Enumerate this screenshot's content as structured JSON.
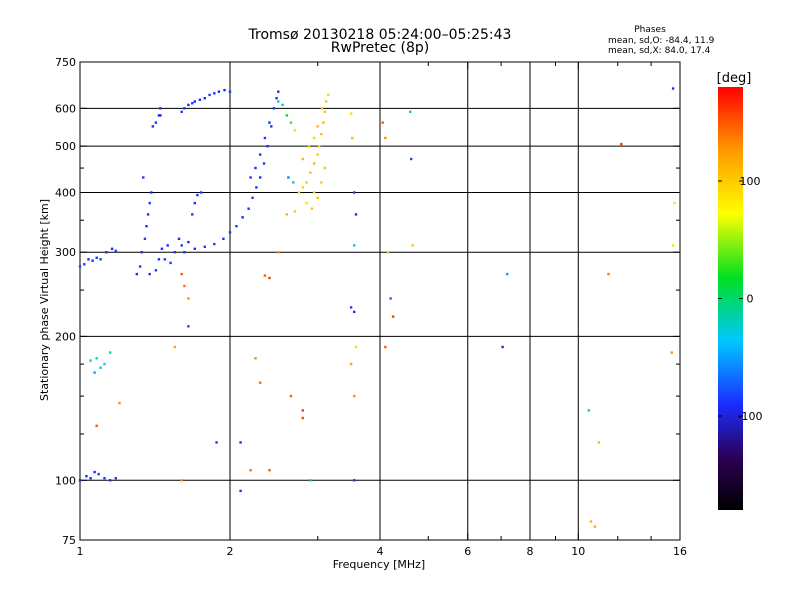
{
  "header": {
    "title": "Tromsø 20130218 05:24:00–05:25:43",
    "subtitle": "RwPretec (8p)"
  },
  "phases": {
    "heading": "Phases",
    "line_o": "mean, sd,O: -84.4, 11.9",
    "line_x": "mean, sd,X:  84.0, 17.4"
  },
  "chart_data": {
    "type": "scatter",
    "xlabel": "Frequency [MHz]",
    "ylabel": "Stationary phase Virtual Height [km]",
    "x_scale": "log",
    "y_scale": "log",
    "xlim": [
      1,
      16
    ],
    "ylim": [
      75,
      750
    ],
    "x_ticks": [
      1,
      2,
      4,
      6,
      8,
      10,
      16
    ],
    "y_ticks": [
      75,
      100,
      200,
      300,
      400,
      500,
      600,
      750
    ],
    "x_minor_ticks": [
      3,
      5,
      7,
      9,
      12,
      14
    ],
    "y_minor_ticks": [
      125,
      150,
      175,
      250,
      350,
      450
    ],
    "grid": true,
    "colorbar": {
      "label": "[deg]",
      "range": [
        -180,
        180
      ],
      "ticks": [
        100,
        0,
        -100
      ],
      "colormap": "rainbow"
    },
    "series": [
      {
        "points": [
          [
            1.0,
            280,
            -80
          ],
          [
            1.02,
            283,
            -85
          ],
          [
            1.04,
            290,
            -90
          ],
          [
            1.06,
            288,
            -88
          ],
          [
            1.08,
            292,
            -85
          ],
          [
            1.1,
            290,
            -82
          ],
          [
            1.13,
            300,
            -90
          ],
          [
            1.16,
            305,
            -88
          ],
          [
            1.18,
            302,
            -85
          ],
          [
            1.0,
            100,
            -92
          ],
          [
            1.03,
            102,
            -88
          ],
          [
            1.05,
            101,
            -90
          ],
          [
            1.07,
            104,
            -95
          ],
          [
            1.09,
            103,
            -88
          ],
          [
            1.12,
            101,
            -86
          ],
          [
            1.15,
            100,
            -90
          ],
          [
            1.18,
            101,
            -84
          ],
          [
            1.05,
            178,
            -30
          ],
          [
            1.08,
            180,
            -25
          ],
          [
            1.1,
            172,
            -40
          ],
          [
            1.07,
            168,
            -50
          ],
          [
            1.12,
            175,
            -35
          ],
          [
            1.15,
            185,
            -20
          ],
          [
            1.08,
            130,
            150
          ],
          [
            1.2,
            145,
            130
          ],
          [
            1.3,
            270,
            -90
          ],
          [
            1.32,
            280,
            -88
          ],
          [
            1.33,
            300,
            -92
          ],
          [
            1.35,
            320,
            -85
          ],
          [
            1.36,
            340,
            -90
          ],
          [
            1.37,
            360,
            -88
          ],
          [
            1.38,
            380,
            -86
          ],
          [
            1.39,
            400,
            -92
          ],
          [
            1.34,
            430,
            -85
          ],
          [
            1.38,
            270,
            -90
          ],
          [
            1.42,
            275,
            -85
          ],
          [
            1.44,
            290,
            -88
          ],
          [
            1.46,
            305,
            -90
          ],
          [
            1.48,
            290,
            -86
          ],
          [
            1.5,
            310,
            -92
          ],
          [
            1.52,
            285,
            -88
          ],
          [
            1.55,
            300,
            -85
          ],
          [
            1.58,
            320,
            -90
          ],
          [
            1.6,
            310,
            -86
          ],
          [
            1.62,
            300,
            -88
          ],
          [
            1.65,
            315,
            -92
          ],
          [
            1.68,
            360,
            -85
          ],
          [
            1.7,
            380,
            -88
          ],
          [
            1.72,
            395,
            -90
          ],
          [
            1.75,
            400,
            -86
          ],
          [
            1.4,
            550,
            -90
          ],
          [
            1.42,
            560,
            -88
          ],
          [
            1.44,
            580,
            -92
          ],
          [
            1.45,
            600,
            -90
          ],
          [
            1.6,
            590,
            -85
          ],
          [
            1.62,
            600,
            -88
          ],
          [
            1.65,
            610,
            -90
          ],
          [
            1.68,
            615,
            -86
          ],
          [
            1.7,
            620,
            -92
          ],
          [
            1.74,
            625,
            -88
          ],
          [
            1.78,
            630,
            -90
          ],
          [
            1.82,
            640,
            -85
          ],
          [
            1.86,
            645,
            -88
          ],
          [
            1.9,
            650,
            -92
          ],
          [
            1.95,
            655,
            -90
          ],
          [
            2.0,
            650,
            -86
          ],
          [
            1.7,
            305,
            -90
          ],
          [
            1.78,
            308,
            -88
          ],
          [
            1.86,
            312,
            -85
          ],
          [
            1.94,
            320,
            -90
          ],
          [
            2.0,
            330,
            -88
          ],
          [
            2.06,
            340,
            -86
          ],
          [
            2.12,
            355,
            -90
          ],
          [
            2.18,
            370,
            -88
          ],
          [
            2.22,
            390,
            -85
          ],
          [
            2.26,
            410,
            -90
          ],
          [
            2.3,
            430,
            -92
          ],
          [
            2.34,
            460,
            -88
          ],
          [
            2.38,
            500,
            -90
          ],
          [
            2.42,
            550,
            -86
          ],
          [
            2.45,
            600,
            -88
          ],
          [
            2.48,
            630,
            -90
          ],
          [
            2.5,
            650,
            -92
          ],
          [
            2.2,
            430,
            -88
          ],
          [
            2.25,
            450,
            -90
          ],
          [
            2.3,
            480,
            -86
          ],
          [
            2.35,
            520,
            -85
          ],
          [
            2.4,
            560,
            -90
          ],
          [
            2.5,
            620,
            -30
          ],
          [
            2.55,
            610,
            -20
          ],
          [
            2.6,
            580,
            10
          ],
          [
            2.65,
            560,
            30
          ],
          [
            2.7,
            540,
            60
          ],
          [
            2.62,
            430,
            -60
          ],
          [
            2.68,
            420,
            -40
          ],
          [
            2.75,
            400,
            90
          ],
          [
            2.8,
            410,
            95
          ],
          [
            2.85,
            420,
            100
          ],
          [
            2.9,
            440,
            105
          ],
          [
            2.95,
            460,
            110
          ],
          [
            3.0,
            480,
            100
          ],
          [
            3.02,
            500,
            95
          ],
          [
            3.05,
            530,
            105
          ],
          [
            3.08,
            560,
            110
          ],
          [
            3.1,
            590,
            100
          ],
          [
            3.12,
            620,
            105
          ],
          [
            3.15,
            640,
            95
          ],
          [
            2.85,
            380,
            90
          ],
          [
            2.92,
            370,
            105
          ],
          [
            3.0,
            390,
            110
          ],
          [
            2.95,
            400,
            95
          ],
          [
            3.05,
            420,
            100
          ],
          [
            3.1,
            450,
            105
          ],
          [
            2.8,
            470,
            110
          ],
          [
            2.88,
            500,
            100
          ],
          [
            2.95,
            520,
            95
          ],
          [
            3.0,
            550,
            110
          ],
          [
            3.06,
            600,
            105
          ],
          [
            2.6,
            360,
            110
          ],
          [
            2.7,
            365,
            100
          ],
          [
            2.5,
            300,
            130
          ],
          [
            1.6,
            270,
            150
          ],
          [
            1.62,
            255,
            140
          ],
          [
            1.65,
            240,
            130
          ],
          [
            1.55,
            190,
            120
          ],
          [
            1.65,
            210,
            -80
          ],
          [
            2.35,
            268,
            150
          ],
          [
            2.4,
            265,
            160
          ],
          [
            2.25,
            180,
            130
          ],
          [
            2.3,
            160,
            140
          ],
          [
            2.65,
            150,
            150
          ],
          [
            2.8,
            140,
            160
          ],
          [
            2.8,
            135,
            155
          ],
          [
            3.5,
            585,
            90
          ],
          [
            3.52,
            520,
            110
          ],
          [
            3.55,
            400,
            -85
          ],
          [
            3.58,
            360,
            -90
          ],
          [
            3.55,
            310,
            -30
          ],
          [
            3.5,
            230,
            -85
          ],
          [
            3.55,
            225,
            -90
          ],
          [
            3.58,
            190,
            90
          ],
          [
            3.5,
            175,
            120
          ],
          [
            3.55,
            150,
            130
          ],
          [
            3.55,
            100,
            -85
          ],
          [
            4.05,
            560,
            150
          ],
          [
            4.1,
            520,
            130
          ],
          [
            4.15,
            300,
            100
          ],
          [
            4.2,
            240,
            -70
          ],
          [
            4.25,
            220,
            160
          ],
          [
            4.1,
            190,
            150
          ],
          [
            4.6,
            590,
            -10
          ],
          [
            4.62,
            470,
            -80
          ],
          [
            4.65,
            310,
            100
          ],
          [
            7.2,
            270,
            -50
          ],
          [
            7.05,
            190,
            -90
          ],
          [
            10.5,
            140,
            -20
          ],
          [
            11.0,
            120,
            110
          ],
          [
            12.2,
            505,
            160
          ],
          [
            11.5,
            270,
            140
          ],
          [
            10.8,
            80,
            120
          ],
          [
            10.6,
            82,
            110
          ],
          [
            15.5,
            660,
            -90
          ],
          [
            15.6,
            380,
            90
          ],
          [
            15.4,
            185,
            130
          ],
          [
            15.5,
            310,
            60
          ],
          [
            2.1,
            120,
            -90
          ],
          [
            2.1,
            95,
            -88
          ],
          [
            1.88,
            120,
            -86
          ],
          [
            1.6,
            100,
            130
          ],
          [
            2.4,
            105,
            150
          ],
          [
            2.2,
            105,
            140
          ],
          [
            2.9,
            100,
            -20
          ],
          [
            1.45,
            580,
            -92
          ]
        ]
      }
    ]
  }
}
